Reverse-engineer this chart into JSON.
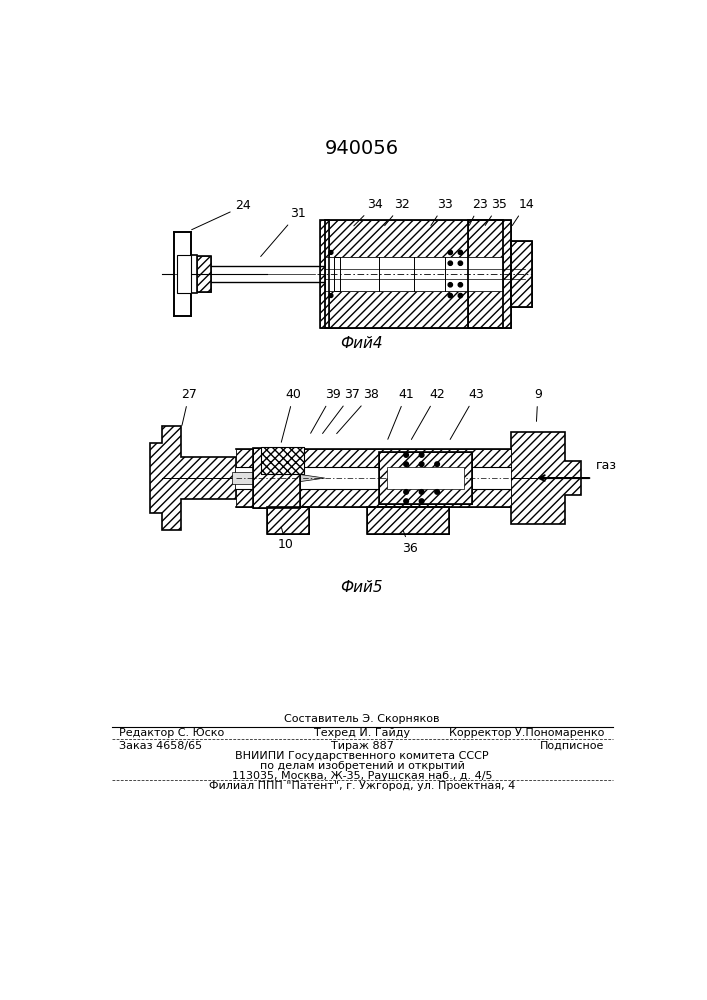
{
  "title": "940056",
  "fig4_caption": "Фий4",
  "fig5_caption": "Фий5",
  "bg": "#ffffff",
  "lc": "#000000",
  "footer_line0": "Составитель Э. Скорняков",
  "footer_line1_left": "Редактор С. Юско",
  "footer_line1_center": "Техред И. Гайду",
  "footer_line1_right": "Корректор У.Пономаренко",
  "footer_line2_left": "Заказ 4658/65",
  "footer_line2_center": "Тираж 887",
  "footer_line2_right": "Подписное",
  "footer_line3": "ВНИИПИ Государственного комитета СССР",
  "footer_line4": "по делам изобретений и открытий",
  "footer_line5": "113035, Москва, Ж-35, Раушская наб., д. 4/5",
  "footer_last": "Филиал ППП \"Патент\", г. Ужгород, ул. Проектная, 4"
}
